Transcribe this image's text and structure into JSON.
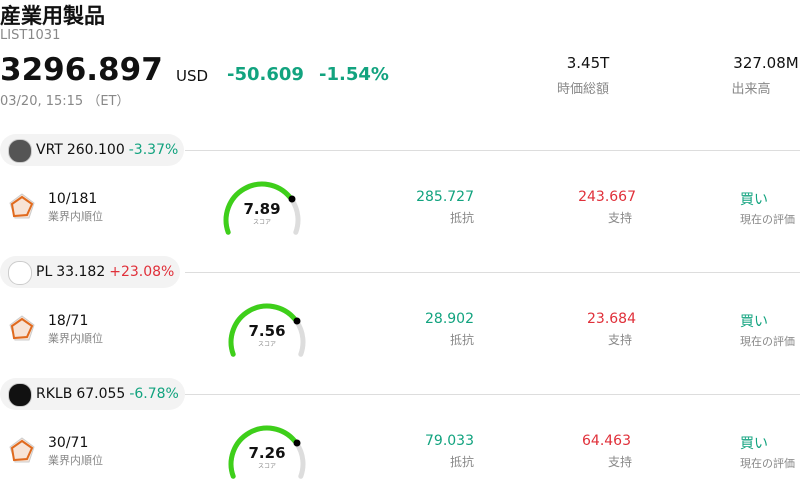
{
  "header": {
    "title": "産業用製品",
    "code": "LIST1031",
    "price": "3296.897",
    "currency": "USD",
    "change": "-50.609",
    "change_pct": "-1.54%",
    "time": "03/20, 15:15 （ET）",
    "stats": [
      {
        "value": "3.45T",
        "label": "時価総額"
      },
      {
        "value": "327.08M",
        "label": "出来高"
      }
    ]
  },
  "stocks": [
    {
      "ticker": "VRT",
      "price": "260.100",
      "change_pct": "-3.37%",
      "rank": "10/181",
      "rank_label": "業界内順位",
      "score": "7.89",
      "score_label": "スコア",
      "resistance": "285.727",
      "resistance_label": "抵抗",
      "support": "243.667",
      "support_label": "支持",
      "rating": "買い",
      "rating_label": "現在の評価"
    },
    {
      "ticker": "PL",
      "price": "33.182",
      "change_pct": "+23.08%",
      "rank": "18/71",
      "rank_label": "業界内順位",
      "score": "7.56",
      "score_label": "スコア",
      "resistance": "28.902",
      "resistance_label": "抵抗",
      "support": "23.684",
      "support_label": "支持",
      "rating": "買い",
      "rating_label": "現在の評価"
    },
    {
      "ticker": "RKLB",
      "price": "67.055",
      "change_pct": "-6.78%",
      "rank": "30/71",
      "rank_label": "業界内順位",
      "score": "7.26",
      "score_label": "スコア",
      "resistance": "79.033",
      "resistance_label": "抵抗",
      "support": "64.463",
      "support_label": "支持",
      "rating": "買い",
      "rating_label": "現在の評価"
    }
  ]
}
